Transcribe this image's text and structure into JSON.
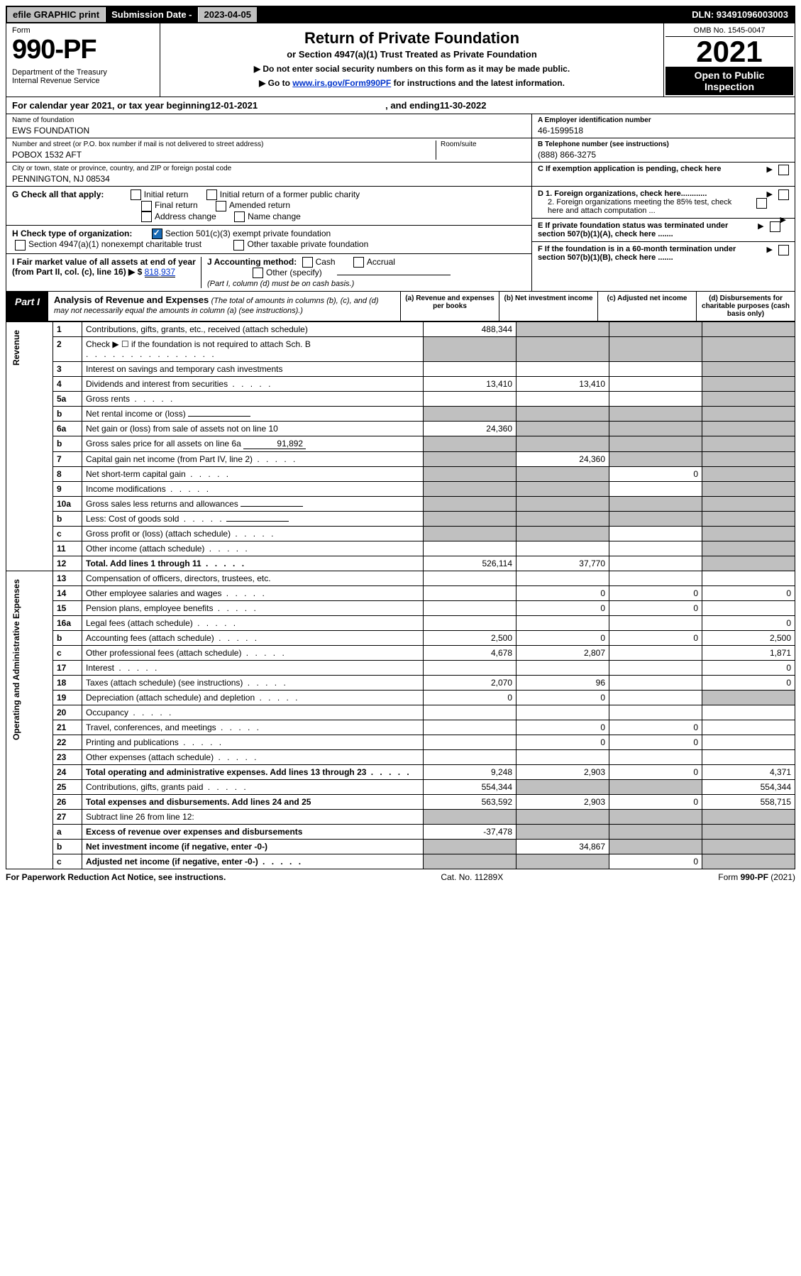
{
  "top_bar": {
    "efile": "efile GRAPHIC print",
    "sub_label": "Submission Date - ",
    "sub_date": "2023-04-05",
    "dln": "DLN: 93491096003003"
  },
  "header": {
    "form_word": "Form",
    "form_number": "990-PF",
    "dept": "Department of the Treasury\nInternal Revenue Service",
    "title": "Return of Private Foundation",
    "subtitle": "or Section 4947(a)(1) Trust Treated as Private Foundation",
    "instr1": "▶ Do not enter social security numbers on this form as it may be made public.",
    "instr2_pre": "▶ Go to ",
    "instr2_link": "www.irs.gov/Form990PF",
    "instr2_post": " for instructions and the latest information.",
    "omb": "OMB No. 1545-0047",
    "year": "2021",
    "open": "Open to Public Inspection"
  },
  "calyear": {
    "prefix": "For calendar year 2021, or tax year beginning ",
    "begin": "12-01-2021",
    "mid": ", and ending ",
    "end": "11-30-2022"
  },
  "entity": {
    "name_label": "Name of foundation",
    "name": "EWS FOUNDATION",
    "addr_label": "Number and street (or P.O. box number if mail is not delivered to street address)",
    "room_label": "Room/suite",
    "addr": "POBOX 1532 AFT",
    "city_label": "City or town, state or province, country, and ZIP or foreign postal code",
    "city": "PENNINGTON, NJ  08534",
    "a_label": "A Employer identification number",
    "a_val": "46-1599518",
    "b_label": "B Telephone number (see instructions)",
    "b_val": "(888) 866-3275",
    "c_label": "C If exemption application is pending, check here"
  },
  "g": {
    "label": "G Check all that apply:",
    "o1": "Initial return",
    "o2": "Initial return of a former public charity",
    "o3": "Final return",
    "o4": "Amended return",
    "o5": "Address change",
    "o6": "Name change"
  },
  "h": {
    "label": "H Check type of organization:",
    "o1": "Section 501(c)(3) exempt private foundation",
    "o2": "Section 4947(a)(1) nonexempt charitable trust",
    "o3": "Other taxable private foundation"
  },
  "i": {
    "label": "I Fair market value of all assets at end of year (from Part II, col. (c), line 16) ▶ $",
    "val": "818,937"
  },
  "j": {
    "label": "J Accounting method:",
    "o1": "Cash",
    "o2": "Accrual",
    "o3": "Other (specify)",
    "note": "(Part I, column (d) must be on cash basis.)"
  },
  "right": {
    "d1": "D 1. Foreign organizations, check here............",
    "d2": "2. Foreign organizations meeting the 85% test, check here and attach computation ...",
    "e": "E  If private foundation status was terminated under section 507(b)(1)(A), check here .......",
    "f": "F  If the foundation is in a 60-month termination under section 507(b)(1)(B), check here .......",
    "arrow": "▶"
  },
  "part1": {
    "label": "Part I",
    "title": "Analysis of Revenue and Expenses",
    "note": "(The total of amounts in columns (b), (c), and (d) may not necessarily equal the amounts in column (a) (see instructions).)",
    "colA": "(a)  Revenue and expenses per books",
    "colB": "(b)  Net investment income",
    "colC": "(c)  Adjusted net income",
    "colD": "(d)  Disbursements for charitable purposes (cash basis only)"
  },
  "sides": {
    "rev": "Revenue",
    "ops": "Operating and Administrative Expenses"
  },
  "lines": [
    {
      "n": "1",
      "d": "Contributions, gifts, grants, etc., received (attach schedule)",
      "a": "488,344",
      "b": "shaded",
      "c": "shaded",
      "dd": "shaded"
    },
    {
      "n": "2",
      "d": "Check ▶ ☐ if the foundation is not required to attach Sch. B",
      "a": "shaded",
      "b": "shaded",
      "c": "shaded",
      "dd": "shaded",
      "dotfill": true
    },
    {
      "n": "3",
      "d": "Interest on savings and temporary cash investments",
      "a": "",
      "b": "",
      "c": "",
      "dd": "shaded"
    },
    {
      "n": "4",
      "d": "Dividends and interest from securities",
      "a": "13,410",
      "b": "13,410",
      "c": "",
      "dd": "shaded",
      "dots": true
    },
    {
      "n": "5a",
      "d": "Gross rents",
      "a": "",
      "b": "",
      "c": "",
      "dd": "shaded",
      "dots": true
    },
    {
      "n": "b",
      "d": "Net rental income or (loss)",
      "a": "shaded",
      "b": "shaded",
      "c": "shaded",
      "dd": "shaded",
      "inline": ""
    },
    {
      "n": "6a",
      "d": "Net gain or (loss) from sale of assets not on line 10",
      "a": "24,360",
      "b": "shaded",
      "c": "shaded",
      "dd": "shaded"
    },
    {
      "n": "b",
      "d": "Gross sales price for all assets on line 6a",
      "a": "shaded",
      "b": "shaded",
      "c": "shaded",
      "dd": "shaded",
      "inline": "91,892"
    },
    {
      "n": "7",
      "d": "Capital gain net income (from Part IV, line 2)",
      "a": "shaded",
      "b": "24,360",
      "c": "shaded",
      "dd": "shaded",
      "dots": true
    },
    {
      "n": "8",
      "d": "Net short-term capital gain",
      "a": "shaded",
      "b": "shaded",
      "c": "0",
      "dd": "shaded",
      "dots": true
    },
    {
      "n": "9",
      "d": "Income modifications",
      "a": "shaded",
      "b": "shaded",
      "c": "",
      "dd": "shaded",
      "dots": true
    },
    {
      "n": "10a",
      "d": "Gross sales less returns and allowances",
      "a": "shaded",
      "b": "shaded",
      "c": "shaded",
      "dd": "shaded",
      "inline": ""
    },
    {
      "n": "b",
      "d": "Less: Cost of goods sold",
      "a": "shaded",
      "b": "shaded",
      "c": "shaded",
      "dd": "shaded",
      "inline": "",
      "dots": true
    },
    {
      "n": "c",
      "d": "Gross profit or (loss) (attach schedule)",
      "a": "shaded",
      "b": "shaded",
      "c": "",
      "dd": "shaded",
      "dots": true
    },
    {
      "n": "11",
      "d": "Other income (attach schedule)",
      "a": "",
      "b": "",
      "c": "",
      "dd": "shaded",
      "dots": true
    },
    {
      "n": "12",
      "d": "Total. Add lines 1 through 11",
      "a": "526,114",
      "b": "37,770",
      "c": "",
      "dd": "shaded",
      "bold": true,
      "dots": true
    },
    {
      "n": "13",
      "d": "Compensation of officers, directors, trustees, etc.",
      "a": "",
      "b": "",
      "c": "",
      "dd": ""
    },
    {
      "n": "14",
      "d": "Other employee salaries and wages",
      "a": "",
      "b": "0",
      "c": "0",
      "dd": "0",
      "dots": true
    },
    {
      "n": "15",
      "d": "Pension plans, employee benefits",
      "a": "",
      "b": "0",
      "c": "0",
      "dd": "",
      "dots": true
    },
    {
      "n": "16a",
      "d": "Legal fees (attach schedule)",
      "a": "",
      "b": "",
      "c": "",
      "dd": "0",
      "dots": true
    },
    {
      "n": "b",
      "d": "Accounting fees (attach schedule)",
      "a": "2,500",
      "b": "0",
      "c": "0",
      "dd": "2,500",
      "dots": true
    },
    {
      "n": "c",
      "d": "Other professional fees (attach schedule)",
      "a": "4,678",
      "b": "2,807",
      "c": "",
      "dd": "1,871",
      "dots": true
    },
    {
      "n": "17",
      "d": "Interest",
      "a": "",
      "b": "",
      "c": "",
      "dd": "0",
      "dots": true
    },
    {
      "n": "18",
      "d": "Taxes (attach schedule) (see instructions)",
      "a": "2,070",
      "b": "96",
      "c": "",
      "dd": "0",
      "dots": true
    },
    {
      "n": "19",
      "d": "Depreciation (attach schedule) and depletion",
      "a": "0",
      "b": "0",
      "c": "",
      "dd": "shaded",
      "dots": true
    },
    {
      "n": "20",
      "d": "Occupancy",
      "a": "",
      "b": "",
      "c": "",
      "dd": "",
      "dots": true
    },
    {
      "n": "21",
      "d": "Travel, conferences, and meetings",
      "a": "",
      "b": "0",
      "c": "0",
      "dd": "",
      "dots": true
    },
    {
      "n": "22",
      "d": "Printing and publications",
      "a": "",
      "b": "0",
      "c": "0",
      "dd": "",
      "dots": true
    },
    {
      "n": "23",
      "d": "Other expenses (attach schedule)",
      "a": "",
      "b": "",
      "c": "",
      "dd": "",
      "dots": true
    },
    {
      "n": "24",
      "d": "Total operating and administrative expenses. Add lines 13 through 23",
      "a": "9,248",
      "b": "2,903",
      "c": "0",
      "dd": "4,371",
      "bold": true,
      "dots": true
    },
    {
      "n": "25",
      "d": "Contributions, gifts, grants paid",
      "a": "554,344",
      "b": "shaded",
      "c": "shaded",
      "dd": "554,344",
      "dots": true
    },
    {
      "n": "26",
      "d": "Total expenses and disbursements. Add lines 24 and 25",
      "a": "563,592",
      "b": "2,903",
      "c": "0",
      "dd": "558,715",
      "bold": true
    },
    {
      "n": "27",
      "d": "Subtract line 26 from line 12:",
      "a": "shaded",
      "b": "shaded",
      "c": "shaded",
      "dd": "shaded"
    },
    {
      "n": "a",
      "d": "Excess of revenue over expenses and disbursements",
      "a": "-37,478",
      "b": "shaded",
      "c": "shaded",
      "dd": "shaded",
      "bold": true
    },
    {
      "n": "b",
      "d": "Net investment income (if negative, enter -0-)",
      "a": "shaded",
      "b": "34,867",
      "c": "shaded",
      "dd": "shaded",
      "bold": true
    },
    {
      "n": "c",
      "d": "Adjusted net income (if negative, enter -0-)",
      "a": "shaded",
      "b": "shaded",
      "c": "0",
      "dd": "shaded",
      "bold": true,
      "dots": true
    }
  ],
  "footer": {
    "left": "For Paperwork Reduction Act Notice, see instructions.",
    "mid": "Cat. No. 11289X",
    "right": "Form 990-PF (2021)"
  }
}
